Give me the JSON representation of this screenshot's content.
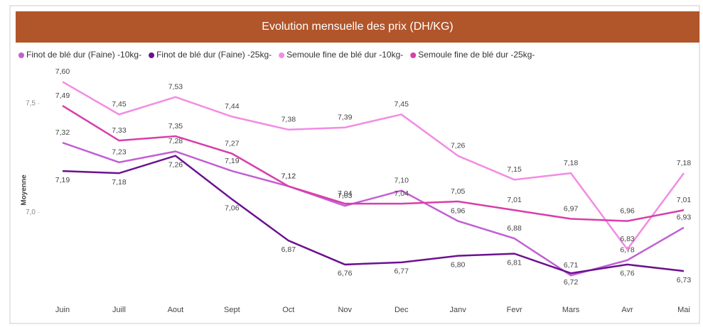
{
  "chart_data": {
    "type": "line",
    "title": "Evolution mensuelle des prix (DH/KG)",
    "y_label": "Moyenne",
    "categories": [
      "Juin",
      "Juill",
      "Aout",
      "Sept",
      "Oct",
      "Nov",
      "Dec",
      "Janv",
      "Fevr",
      "Mars",
      "Avr",
      "Mai"
    ],
    "series": [
      {
        "name": "Finot de blé dur (Faine) -10kg-",
        "color": "#c25fd3",
        "values": [
          7.32,
          7.23,
          7.28,
          7.19,
          7.12,
          7.03,
          7.1,
          6.96,
          6.88,
          6.71,
          6.78,
          6.93
        ],
        "value_labels": [
          "7,32",
          "7,23",
          "7,28",
          "7,19",
          "7,12",
          "7,03",
          "7,10",
          "6,96",
          "6,88",
          "6,71",
          "6,78",
          "6,93"
        ]
      },
      {
        "name": "Finot de blé dur (Faine) -25kg-",
        "color": "#6b1190",
        "values": [
          7.19,
          7.18,
          7.26,
          7.06,
          6.87,
          6.76,
          6.77,
          6.8,
          6.81,
          6.72,
          6.76,
          6.73
        ],
        "value_labels": [
          "7,19",
          "7,18",
          "7,26",
          "7,06",
          "6,87",
          "6,76",
          "6,77",
          "6,80",
          "6,81",
          "6,72",
          "6,76",
          "6,73"
        ]
      },
      {
        "name": "Semoule fine de blé dur -10kg-",
        "color": "#f28ce3",
        "values": [
          7.6,
          7.45,
          7.53,
          7.44,
          7.38,
          7.39,
          7.45,
          7.26,
          7.15,
          7.18,
          6.83,
          7.18
        ],
        "value_labels": [
          "7,60",
          "7,45",
          "7,53",
          "7,44",
          "7,38",
          "7,39",
          "7,45",
          "7,26",
          "7,15",
          "7,18",
          "6,83",
          "7,18"
        ]
      },
      {
        "name": "Semoule fine de blé dur -25kg-",
        "color": "#d83ea9",
        "values": [
          7.49,
          7.33,
          7.35,
          7.27,
          7.12,
          7.04,
          7.04,
          7.05,
          7.01,
          6.97,
          6.96,
          7.01
        ],
        "value_labels": [
          "7,49",
          "7,33",
          "7,35",
          "7,27",
          "7,12",
          "7,04",
          "7,04",
          "7,05",
          "7,01",
          "6,97",
          "6,96",
          "7,01"
        ]
      }
    ],
    "ylim": [
      6.6,
      7.65
    ],
    "yticks": [
      {
        "value": 7.0,
        "label": "7,0"
      },
      {
        "value": 7.5,
        "label": "7,5"
      }
    ]
  }
}
